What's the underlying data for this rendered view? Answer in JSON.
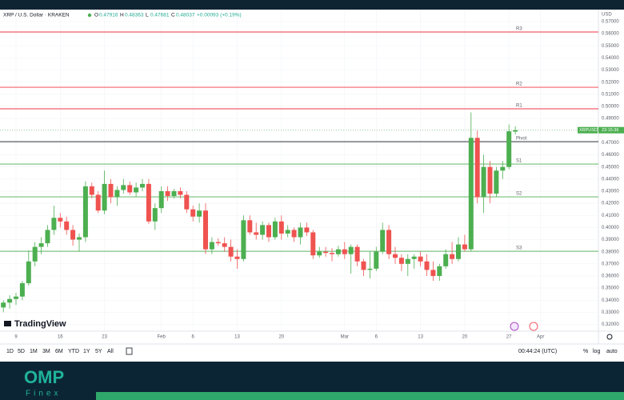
{
  "header": {
    "title": "XRP / U.S. Dollar · KRAKEN",
    "ohlc_letters": [
      "O",
      "H",
      "L",
      "C"
    ],
    "change": "+0.00093 (+0.19%)"
  },
  "chart_data": {
    "type": "candlestick",
    "currency": "USD",
    "categories": [
      null,
      null,
      "9",
      null,
      null,
      null,
      null,
      null,
      null,
      "16",
      null,
      null,
      null,
      null,
      null,
      null,
      "23",
      null,
      null,
      null,
      null,
      null,
      null,
      null,
      null,
      "Feb",
      null,
      null,
      null,
      null,
      "6",
      null,
      null,
      null,
      null,
      null,
      null,
      "13",
      null,
      null,
      null,
      null,
      null,
      null,
      "20",
      null,
      null,
      null,
      null,
      null,
      null,
      null,
      null,
      null,
      "Mar",
      null,
      null,
      null,
      null,
      "6",
      null,
      null,
      null,
      null,
      null,
      null,
      "13",
      null,
      null,
      null,
      null,
      null,
      null,
      "20",
      null,
      null,
      null,
      null,
      null,
      null,
      "27",
      null,
      null,
      null,
      null,
      "Apr"
    ],
    "open": [
      0.334,
      0.338,
      0.341,
      0.343,
      0.354,
      0.372,
      0.384,
      0.387,
      0.398,
      0.408,
      0.405,
      0.398,
      0.39,
      0.392,
      0.434,
      0.427,
      0.414,
      0.436,
      0.425,
      0.431,
      0.435,
      0.429,
      0.433,
      0.436,
      0.405,
      0.416,
      0.43,
      0.426,
      0.43,
      0.427,
      0.415,
      0.409,
      0.414,
      0.382,
      0.388,
      0.387,
      0.384,
      0.376,
      0.374,
      0.406,
      0.396,
      0.394,
      0.402,
      0.392,
      0.405,
      0.395,
      0.398,
      0.392,
      0.4,
      0.396,
      0.377,
      0.38,
      0.379,
      0.378,
      0.382,
      0.378,
      0.384,
      0.372,
      0.365,
      0.366,
      0.38,
      0.398,
      0.378,
      0.375,
      0.37,
      0.374,
      0.376,
      0.372,
      0.365,
      0.36,
      0.368,
      0.378,
      0.374,
      0.386,
      0.382,
      0.474,
      0.425,
      0.45,
      0.428,
      0.447,
      0.45,
      0.47916,
      null,
      null,
      null,
      null
    ],
    "high": [
      0.34,
      0.344,
      0.346,
      0.356,
      0.381,
      0.388,
      0.392,
      0.402,
      0.418,
      0.412,
      0.409,
      0.402,
      0.395,
      0.438,
      0.437,
      0.43,
      0.447,
      0.44,
      0.434,
      0.44,
      0.438,
      0.437,
      0.44,
      0.44,
      0.42,
      0.434,
      0.434,
      0.432,
      0.433,
      0.43,
      0.418,
      0.42,
      0.42,
      0.392,
      0.391,
      0.392,
      0.39,
      0.382,
      0.41,
      0.41,
      0.404,
      0.405,
      0.404,
      0.408,
      0.41,
      0.402,
      0.4,
      0.404,
      0.404,
      0.398,
      0.384,
      0.384,
      0.383,
      0.385,
      0.388,
      0.386,
      0.386,
      0.374,
      0.38,
      0.384,
      0.404,
      0.402,
      0.384,
      0.378,
      0.378,
      0.378,
      0.38,
      0.378,
      0.372,
      0.37,
      0.382,
      0.388,
      0.392,
      0.394,
      0.495,
      0.48,
      0.46,
      0.455,
      0.45,
      0.455,
      0.485,
      0.48363,
      null,
      null,
      null,
      null
    ],
    "low": [
      0.33,
      0.333,
      0.336,
      0.34,
      0.352,
      0.368,
      0.378,
      0.384,
      0.394,
      0.4,
      0.394,
      0.385,
      0.38,
      0.388,
      0.424,
      0.412,
      0.411,
      0.42,
      0.418,
      0.428,
      0.427,
      0.425,
      0.43,
      0.403,
      0.398,
      0.412,
      0.422,
      0.424,
      0.424,
      0.412,
      0.405,
      0.404,
      0.378,
      0.378,
      0.385,
      0.38,
      0.372,
      0.366,
      0.372,
      0.394,
      0.39,
      0.39,
      0.388,
      0.39,
      0.39,
      0.392,
      0.388,
      0.386,
      0.393,
      0.374,
      0.375,
      0.376,
      0.372,
      0.376,
      0.374,
      0.362,
      0.368,
      0.36,
      0.358,
      0.364,
      0.378,
      0.374,
      0.37,
      0.364,
      0.36,
      0.366,
      0.368,
      0.36,
      0.356,
      0.356,
      0.366,
      0.37,
      0.372,
      0.38,
      0.38,
      0.42,
      0.412,
      0.42,
      0.425,
      0.44,
      0.448,
      0.47681,
      null,
      null,
      null,
      null
    ],
    "close": [
      0.338,
      0.341,
      0.343,
      0.354,
      0.372,
      0.384,
      0.387,
      0.398,
      0.408,
      0.405,
      0.398,
      0.39,
      0.392,
      0.434,
      0.427,
      0.414,
      0.436,
      0.425,
      0.431,
      0.435,
      0.429,
      0.433,
      0.436,
      0.405,
      0.416,
      0.43,
      0.426,
      0.43,
      0.427,
      0.415,
      0.409,
      0.414,
      0.382,
      0.388,
      0.387,
      0.384,
      0.376,
      0.374,
      0.406,
      0.396,
      0.394,
      0.402,
      0.392,
      0.405,
      0.395,
      0.398,
      0.392,
      0.4,
      0.396,
      0.377,
      0.38,
      0.379,
      0.378,
      0.382,
      0.378,
      0.384,
      0.372,
      0.365,
      0.366,
      0.38,
      0.398,
      0.378,
      0.375,
      0.37,
      0.374,
      0.376,
      0.372,
      0.365,
      0.36,
      0.368,
      0.378,
      0.374,
      0.386,
      0.382,
      0.474,
      0.425,
      0.45,
      0.428,
      0.447,
      0.45,
      0.47944,
      0.48037,
      null,
      null,
      null,
      null
    ],
    "up_color": "#4caf50",
    "down_color": "#ef5350",
    "ylim": [
      0.3144,
      0.5799
    ],
    "yticks": [
      {
        "value": 0.57,
        "label": "0.57000"
      },
      {
        "value": 0.56,
        "label": "0.56000"
      },
      {
        "value": 0.55,
        "label": "0.55000"
      },
      {
        "value": 0.54,
        "label": "0.54000"
      },
      {
        "value": 0.53,
        "label": "0.53000"
      },
      {
        "value": 0.52,
        "label": "0.52000"
      },
      {
        "value": 0.51,
        "label": "0.51000"
      },
      {
        "value": 0.5,
        "label": "0.50000"
      },
      {
        "value": 0.49,
        "label": "0.49000"
      },
      {
        "value": 0.48,
        "label": "0.48000"
      },
      {
        "value": 0.47,
        "label": "0.47000"
      },
      {
        "value": 0.46,
        "label": "0.46000"
      },
      {
        "value": 0.45,
        "label": "0.45000"
      },
      {
        "value": 0.44,
        "label": "0.44000"
      },
      {
        "value": 0.43,
        "label": "0.43000"
      },
      {
        "value": 0.42,
        "label": "0.42000"
      },
      {
        "value": 0.41,
        "label": "0.41000"
      },
      {
        "value": 0.4,
        "label": "0.40000"
      },
      {
        "value": 0.39,
        "label": "0.39000"
      },
      {
        "value": 0.38,
        "label": "0.38000"
      },
      {
        "value": 0.37,
        "label": "0.37000"
      },
      {
        "value": 0.36,
        "label": "0.36000"
      },
      {
        "value": 0.35,
        "label": "0.35000"
      },
      {
        "value": 0.34,
        "label": "0.34000"
      },
      {
        "value": 0.33,
        "label": "0.33000"
      },
      {
        "value": 0.32,
        "label": "0.32000"
      }
    ],
    "grid": true,
    "levels": [
      {
        "name": "R3",
        "value": 0.5614,
        "color": "#f23645"
      },
      {
        "name": "R2",
        "value": 0.5158,
        "color": "#f23645"
      },
      {
        "name": "R1",
        "value": 0.498,
        "color": "#f23645"
      },
      {
        "name": "Pivot",
        "value": 0.4709,
        "color": "#131722"
      },
      {
        "name": "S1",
        "value": 0.4524,
        "color": "#4caf50"
      },
      {
        "name": "S2",
        "value": 0.4253,
        "color": "#4caf50"
      },
      {
        "name": "S3",
        "value": 0.3804,
        "color": "#4caf50"
      }
    ],
    "last_tag": {
      "symbol": "XRPUSD",
      "countdown": "23:15:36"
    },
    "watermark": "TradingView"
  },
  "toolbar": {
    "ranges": [
      "1D",
      "5D",
      "1M",
      "3M",
      "6M",
      "YTD",
      "1Y",
      "5Y",
      "All"
    ],
    "clock": "00:44:24 (UTC)",
    "options": [
      "%",
      "log",
      "auto"
    ]
  },
  "footer": {
    "brand": "OMP",
    "sub": "Finex"
  }
}
